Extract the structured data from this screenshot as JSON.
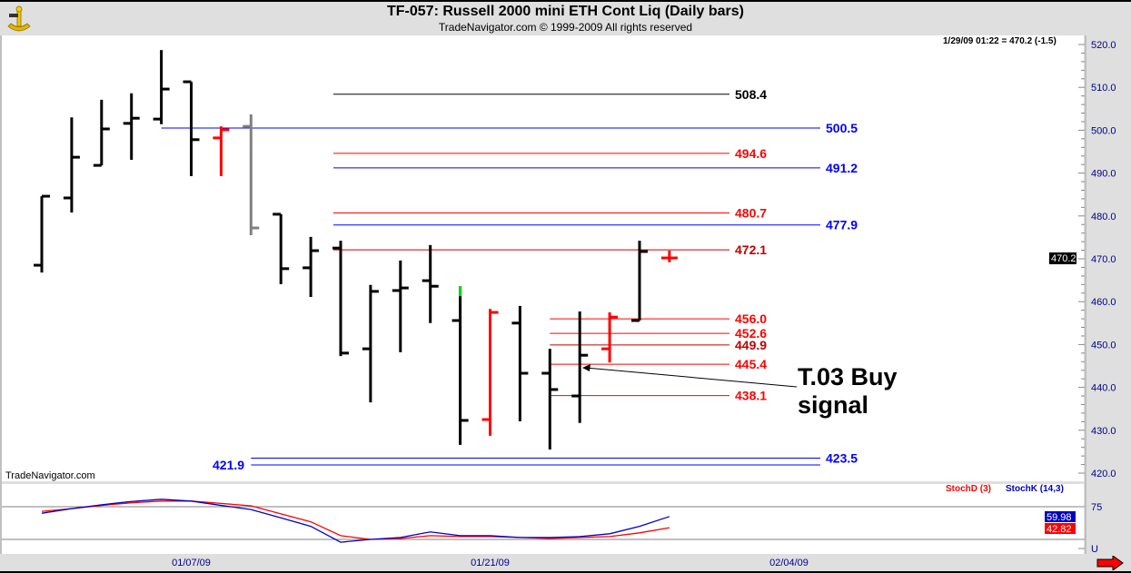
{
  "header": {
    "title": "TF-057:  Russell 2000 mini ETH Cont Liq  (Daily bars)",
    "subtitle": "TradeNavigator.com © 1999-2009 All rights reserved",
    "readout": "1/29/09 01:22 = 470.2 (-1.5)",
    "watermark": "TradeNavigator.com"
  },
  "annotation": {
    "line1": "T.03 Buy",
    "line2": "signal"
  },
  "stoch": {
    "legend_d": "StochD (3)",
    "legend_k": "StochK (14,3)",
    "axis_labels": [
      "75",
      "U"
    ],
    "current_k": "59.98",
    "current_d": "42.82"
  },
  "price_badge": "470.2",
  "x_dates": [
    {
      "label": "01/07/09",
      "bar": 5
    },
    {
      "label": "01/21/09",
      "bar": 15
    },
    {
      "label": "02/04/09",
      "bar": 25
    }
  ],
  "colors": {
    "blue": "#0000ff",
    "red": "#ff0000",
    "darkred": "#c00000",
    "black": "#000000",
    "gray": "#808080",
    "green": "#00dd00",
    "axis": "#00008b"
  },
  "chart_data": {
    "type": "ohlc",
    "title": "TF-057: Russell 2000 mini ETH Cont Liq (Daily bars)",
    "ylim": [
      420,
      520
    ],
    "yticks": [
      "520.0",
      "510.0",
      "500.0",
      "490.0",
      "480.0",
      "470.0",
      "460.0",
      "450.0",
      "440.0",
      "430.0",
      "420.0"
    ],
    "bars": [
      {
        "o": 468.5,
        "h": 484.6,
        "l": 466.8,
        "c": 484.6,
        "color": "black"
      },
      {
        "o": 484.2,
        "h": 503.0,
        "l": 480.8,
        "c": 493.7,
        "color": "black"
      },
      {
        "o": 491.8,
        "h": 507.1,
        "l": 491.8,
        "c": 500.3,
        "color": "black"
      },
      {
        "o": 501.6,
        "h": 508.6,
        "l": 493.1,
        "c": 502.8,
        "color": "black"
      },
      {
        "o": 502.6,
        "h": 518.7,
        "l": 501.4,
        "c": 509.6,
        "color": "black"
      },
      {
        "o": 511.3,
        "h": 511.3,
        "l": 489.3,
        "c": 497.8,
        "color": "black"
      },
      {
        "o": 498.2,
        "h": 500.9,
        "l": 489.3,
        "c": 500.1,
        "color": "red"
      },
      {
        "o": 500.9,
        "h": 503.7,
        "l": 475.5,
        "c": 477.2,
        "color": "gray"
      },
      {
        "o": 480.4,
        "h": 480.4,
        "l": 464.1,
        "c": 467.7,
        "color": "black"
      },
      {
        "o": 467.9,
        "h": 475.1,
        "l": 461.1,
        "c": 471.9,
        "color": "black"
      },
      {
        "o": 472.5,
        "h": 474.2,
        "l": 447.3,
        "c": 448.0,
        "color": "black"
      },
      {
        "o": 449.0,
        "h": 463.9,
        "l": 436.5,
        "c": 462.4,
        "color": "black"
      },
      {
        "o": 462.6,
        "h": 469.6,
        "l": 448.2,
        "c": 463.2,
        "color": "black"
      },
      {
        "o": 464.9,
        "h": 473.2,
        "l": 455.0,
        "c": 463.6,
        "color": "black"
      },
      {
        "o": 455.6,
        "h": 463.6,
        "l": 426.6,
        "c": 432.3,
        "color": "black",
        "tip": "green"
      },
      {
        "o": 432.5,
        "h": 458.3,
        "l": 428.7,
        "c": 457.5,
        "color": "red"
      },
      {
        "o": 455.0,
        "h": 459.0,
        "l": 432.1,
        "c": 443.3,
        "color": "black"
      },
      {
        "o": 443.3,
        "h": 449.0,
        "l": 425.5,
        "c": 439.5,
        "color": "black"
      },
      {
        "o": 438.0,
        "h": 457.7,
        "l": 431.7,
        "c": 447.5,
        "color": "black"
      },
      {
        "o": 449.0,
        "h": 457.5,
        "l": 445.8,
        "c": 456.4,
        "color": "red"
      },
      {
        "o": 455.6,
        "h": 474.2,
        "l": 455.6,
        "c": 471.7,
        "color": "black"
      },
      {
        "o": 470.2,
        "h": 471.9,
        "l": 469.2,
        "c": 470.2,
        "color": "red"
      }
    ],
    "levels": [
      {
        "value": 508.4,
        "label": "508.4",
        "color": "black",
        "from_bar": 10,
        "span": "short"
      },
      {
        "value": 500.5,
        "label": "500.5",
        "color": "blue",
        "from_bar": 4,
        "span": "long"
      },
      {
        "value": 494.6,
        "label": "494.6",
        "color": "red",
        "from_bar": 10,
        "span": "short"
      },
      {
        "value": 491.2,
        "label": "491.2",
        "color": "blue",
        "from_bar": 10,
        "span": "long"
      },
      {
        "value": 480.7,
        "label": "480.7",
        "color": "red",
        "from_bar": 10,
        "span": "short"
      },
      {
        "value": 477.9,
        "label": "477.9",
        "color": "blue",
        "from_bar": 10,
        "span": "long"
      },
      {
        "value": 472.1,
        "label": "472.1",
        "color": "darkred",
        "from_bar": 10,
        "span": "short"
      },
      {
        "value": 456.0,
        "label": "456.0",
        "color": "red",
        "from_bar": 17,
        "span": "short"
      },
      {
        "value": 452.6,
        "label": "452.6",
        "color": "red",
        "from_bar": 17,
        "span": "short"
      },
      {
        "value": 449.9,
        "label": "449.9",
        "color": "darkred",
        "from_bar": 17,
        "span": "short"
      },
      {
        "value": 445.4,
        "label": "445.4",
        "color": "red",
        "from_bar": 17,
        "span": "short"
      },
      {
        "value": 438.1,
        "label": "438.1",
        "color": "red",
        "from_bar": 17,
        "span": "short"
      },
      {
        "value": 423.5,
        "label": "423.5",
        "color": "blue",
        "from_bar": 7,
        "span": "long"
      },
      {
        "value": 421.9,
        "label": "421.9",
        "color": "blue",
        "from_bar": 7,
        "span": "long",
        "label_side": "left"
      }
    ],
    "stochastic": {
      "ylim": [
        0,
        100
      ],
      "guides": [
        75,
        25
      ],
      "k": [
        65,
        72,
        78,
        83,
        86.4,
        83.6,
        77,
        70.7,
        58,
        45,
        20.7,
        25,
        27.9,
        36.4,
        30.7,
        30.7,
        27.9,
        27.9,
        29.3,
        33.6,
        45,
        59.98
      ],
      "d": [
        67.9,
        72,
        77,
        81,
        83.6,
        83.6,
        80,
        76.4,
        64,
        52,
        30.7,
        25,
        26.4,
        30.7,
        29.3,
        29.3,
        27.9,
        26.4,
        27.9,
        29.3,
        35,
        42.82
      ]
    }
  }
}
